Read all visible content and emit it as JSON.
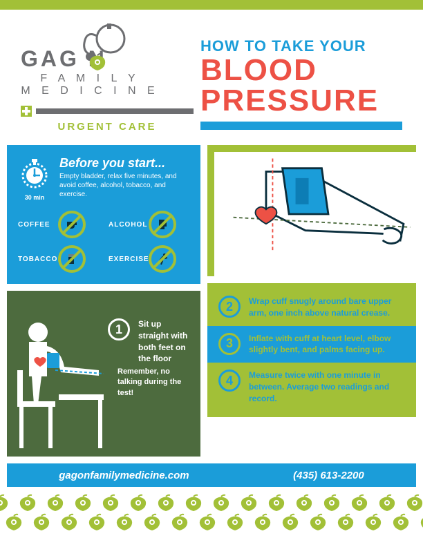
{
  "colors": {
    "lime": "#a2c037",
    "blue": "#1b9dd9",
    "red": "#ed5145",
    "gray": "#6d6e71",
    "olive": "#4d6b3e",
    "heartRed": "#ed5145"
  },
  "logo": {
    "brand": "GAG   N",
    "line1": "F A M I L Y",
    "line2": "M E D I C I N E",
    "urgent": "URGENT CARE"
  },
  "title": {
    "line1": "HOW TO TAKE YOUR",
    "line2a": "BLOOD",
    "line2b": "PRESSURE"
  },
  "before": {
    "heading": "Before you start...",
    "body": "Empty bladder, relax five minutes, and avoid coffee, alcohol, tobacco, and exercise.",
    "timerLabel": "30 min"
  },
  "avoid": [
    {
      "label": "COFFEE",
      "icon": "coffee"
    },
    {
      "label": "ALCOHOL",
      "icon": "alcohol"
    },
    {
      "label": "TOBACCO",
      "icon": "tobacco"
    },
    {
      "label": "EXERCISE",
      "icon": "exercise"
    }
  ],
  "steps": [
    {
      "n": "1",
      "text": "Sit up straight with both feet on the floor"
    },
    {
      "n": "2",
      "text": "Wrap cuff snugly around bare upper arm, one inch above natural crease."
    },
    {
      "n": "3",
      "text": "Inflate with cuff at heart level, elbow slightly bent, and palms facing up."
    },
    {
      "n": "4",
      "text": "Measure twice with one minute in between. Average two readings and record."
    }
  ],
  "remember": "Remember, no talking during the test!",
  "footer": {
    "site": "gagonfamilymedicine.com",
    "phone": "(435) 613-2200"
  }
}
